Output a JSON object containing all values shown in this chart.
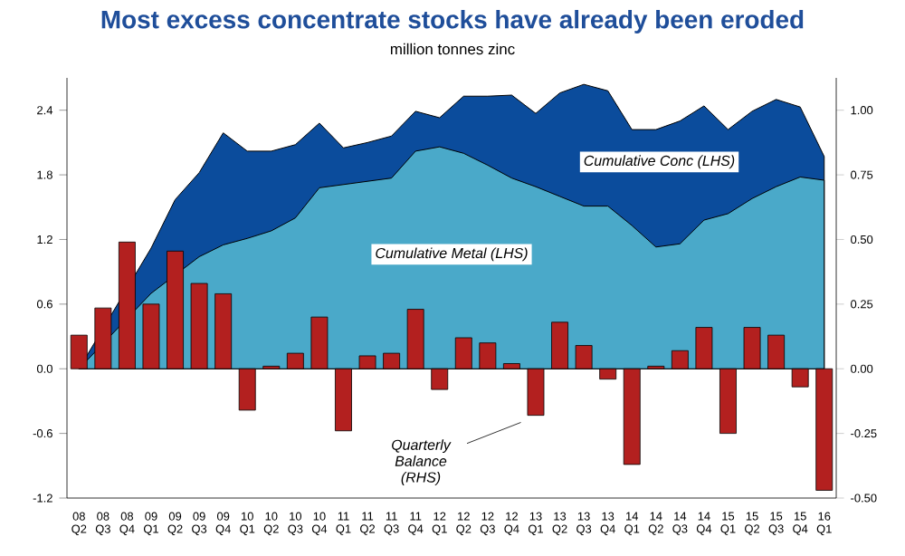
{
  "chart_data": {
    "type": "area",
    "title": "Most excess concentrate stocks have already been eroded",
    "subtitle": "million tonnes zinc",
    "categories": [
      "08 Q2",
      "08 Q3",
      "08 Q4",
      "09 Q1",
      "09 Q2",
      "09 Q3",
      "09 Q4",
      "10 Q1",
      "10 Q2",
      "10 Q3",
      "10 Q4",
      "11 Q1",
      "11 Q2",
      "11 Q3",
      "11 Q4",
      "12 Q1",
      "12 Q2",
      "12 Q3",
      "12 Q4",
      "13 Q1",
      "13 Q2",
      "13 Q3",
      "13 Q4",
      "14 Q1",
      "14 Q2",
      "14 Q3",
      "14 Q4",
      "15 Q1",
      "15 Q2",
      "15 Q3",
      "15 Q4",
      "16 Q1"
    ],
    "series": [
      {
        "name": "Cumulative Conc (LHS)",
        "color": "#0b4c9c",
        "values": [
          0,
          null,
          null,
          1.12,
          1.57,
          1.82,
          2.19,
          2.02,
          2.02,
          2.08,
          2.28,
          2.05,
          2.1,
          2.16,
          2.39,
          2.33,
          2.53,
          2.53,
          2.54,
          2.37,
          2.56,
          2.64,
          2.58,
          2.22,
          2.22,
          2.3,
          2.44,
          2.22,
          2.39,
          2.5,
          2.43,
          1.97
        ]
      },
      {
        "name": "Cumulative Metal (LHS)",
        "color": "#4aa9c9",
        "values": [
          0,
          null,
          null,
          0.7,
          null,
          1.04,
          1.15,
          1.21,
          1.28,
          1.4,
          1.68,
          1.71,
          1.74,
          1.77,
          2.02,
          2.06,
          2.0,
          1.89,
          1.77,
          1.69,
          1.6,
          1.51,
          1.51,
          1.33,
          1.13,
          1.16,
          1.38,
          1.44,
          1.58,
          1.69,
          1.78,
          1.75
        ]
      },
      {
        "name": "Quarterly Balance (RHS)",
        "type": "bar",
        "axis": "y2",
        "color": "#b3201f",
        "values": [
          0.13,
          0.235,
          0.49,
          0.25,
          0.455,
          0.33,
          0.29,
          -0.16,
          0.01,
          0.06,
          0.2,
          -0.24,
          0.05,
          0.06,
          0.23,
          -0.08,
          0.12,
          0.1,
          0.02,
          -0.18,
          0.18,
          0.09,
          -0.04,
          -0.37,
          0.01,
          0.07,
          0.16,
          -0.25,
          0.16,
          0.13,
          -0.07,
          -0.47
        ]
      }
    ],
    "ylim": [
      -1.2,
      2.7
    ],
    "yticks": [
      -1.2,
      -0.6,
      {
        "value": 0,
        "label": "0.0"
      },
      0.6,
      1.2,
      1.8,
      2.4
    ],
    "y2lim": [
      -0.5,
      1.125
    ],
    "y2ticks": [
      {
        "value": -0.5,
        "label": "-0.50"
      },
      {
        "value": -0.25,
        "label": "-0.25"
      },
      {
        "value": 0,
        "label": "0.00"
      },
      {
        "value": 0.25,
        "label": "0.25"
      },
      {
        "value": 0.5,
        "label": "0.50"
      },
      {
        "value": 0.75,
        "label": "0.75"
      },
      {
        "value": 1,
        "label": "1.00"
      }
    ]
  }
}
